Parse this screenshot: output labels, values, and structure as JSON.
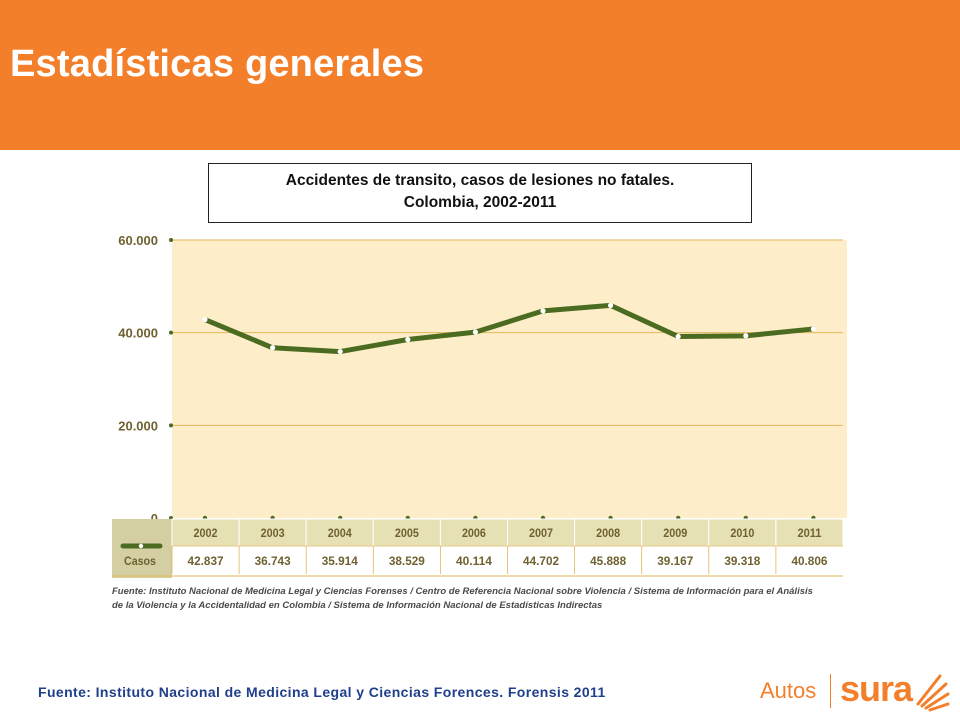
{
  "header": {
    "title": "Estadísticas generales"
  },
  "chart_title": {
    "line1": "Accidentes de transito, casos de lesiones no fatales.",
    "line2": "Colombia, 2002-2011"
  },
  "chart_data": {
    "type": "line",
    "categories": [
      "2002",
      "2003",
      "2004",
      "2005",
      "2006",
      "2007",
      "2008",
      "2009",
      "2010",
      "2011"
    ],
    "series": [
      {
        "name": "Casos",
        "values": [
          42837,
          36743,
          35914,
          38529,
          40114,
          44702,
          45888,
          39167,
          39318,
          40806
        ]
      }
    ],
    "table_values": [
      "42.837",
      "36.743",
      "35.914",
      "38.529",
      "40.114",
      "44.702",
      "45.888",
      "39.167",
      "39.318",
      "40.806"
    ],
    "y_ticks": [
      {
        "value": 0,
        "label": "0"
      },
      {
        "value": 20000,
        "label": "20.000"
      },
      {
        "value": 40000,
        "label": "40.000"
      },
      {
        "value": 60000,
        "label": "60.000"
      }
    ],
    "ylim": [
      0,
      60000
    ],
    "grid": true,
    "colors": {
      "line": "#4a6b20",
      "plot_bg": "#fdeec9",
      "gridline": "#e3b75a",
      "table_header_bg": "#e6e1b5",
      "legend_bg": "#d3cfa2",
      "axis_text": "#6f6130",
      "marker": "#ffffff"
    }
  },
  "source_note": {
    "line1": "Fuente: Instituto Nacional de Medicina Legal y Ciencias Forenses / Centro de Referencia Nacional sobre Violencia / Sistema de Información para el Análisis",
    "line2": "de la Violencia y la Accidentalidad en Colombia / Sistema de Información Nacional de Estadísticas Indirectas"
  },
  "footer": {
    "source": "Fuente: Instituto Nacional de Medicina Legal y Ciencias Forences. Forensis 2011",
    "brand_left": "Autos",
    "brand_right": "sura"
  },
  "colors": {
    "accent": "#f47f2b",
    "footer_text": "#1f3f8a"
  }
}
